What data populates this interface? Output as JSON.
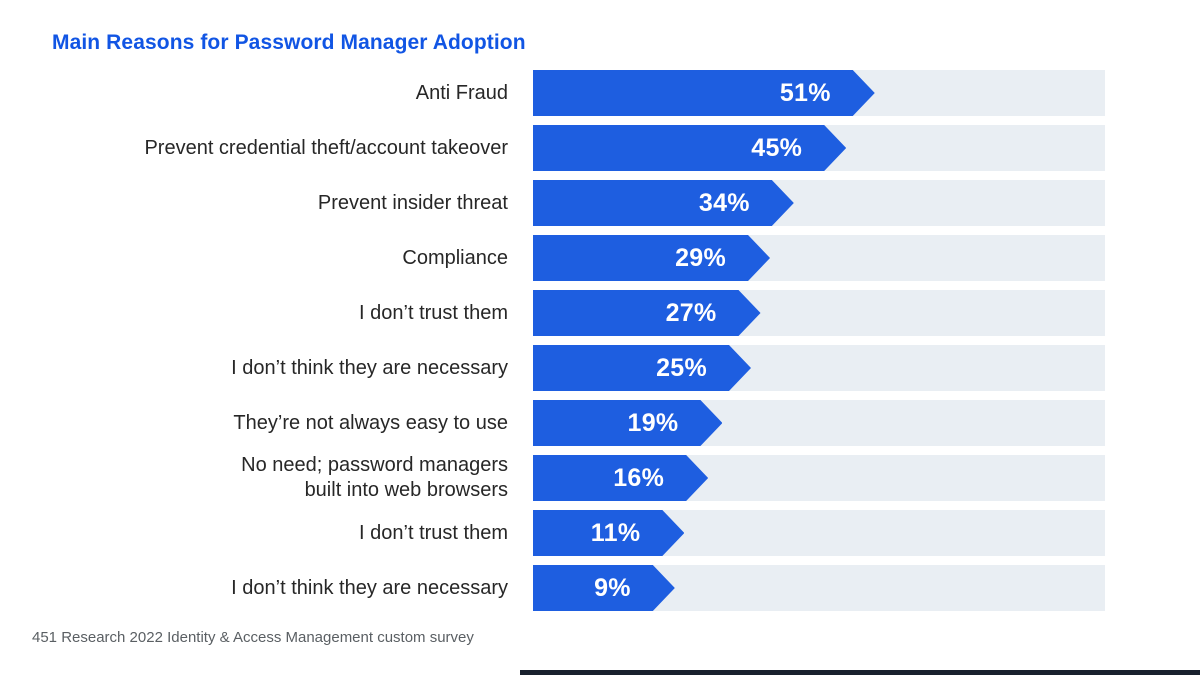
{
  "title": "Main Reasons for Password Manager Adoption",
  "footer": "451 Research 2022 Identity & Access Management custom survey",
  "colors": {
    "title": "#1155e4",
    "bar": "#1e5ee0",
    "track": "#e9eef3",
    "value_text": "#ffffff",
    "label_text": "#272727",
    "footer_text": "#5a5f63",
    "bottom_strip": "#19212e"
  },
  "chart_data": {
    "type": "bar",
    "orientation": "horizontal",
    "title": "Main Reasons for Password Manager Adoption",
    "categories": [
      "Anti Fraud",
      "Prevent credential theft/account takeover",
      "Prevent insider threat",
      "Compliance",
      "I don’t trust them",
      "I don’t think they are necessary",
      "They’re not always easy to use",
      "No need; password managers\nbuilt into web browsers",
      "I don’t trust them",
      "I don’t think they are necessary"
    ],
    "values": [
      51,
      45,
      34,
      29,
      27,
      25,
      19,
      16,
      11,
      9
    ],
    "value_suffix": "%",
    "value_labels": [
      "51%",
      "45%",
      "34%",
      "29%",
      "27%",
      "25%",
      "19%",
      "16%",
      "11%",
      "9%"
    ],
    "xlabel": "",
    "ylabel": "",
    "xlim": [
      0,
      100
    ],
    "grid": false,
    "legend": false,
    "bar_style": "arrow-tip with full-width light track background",
    "source_note": "451 Research 2022 Identity & Access Management custom survey"
  }
}
